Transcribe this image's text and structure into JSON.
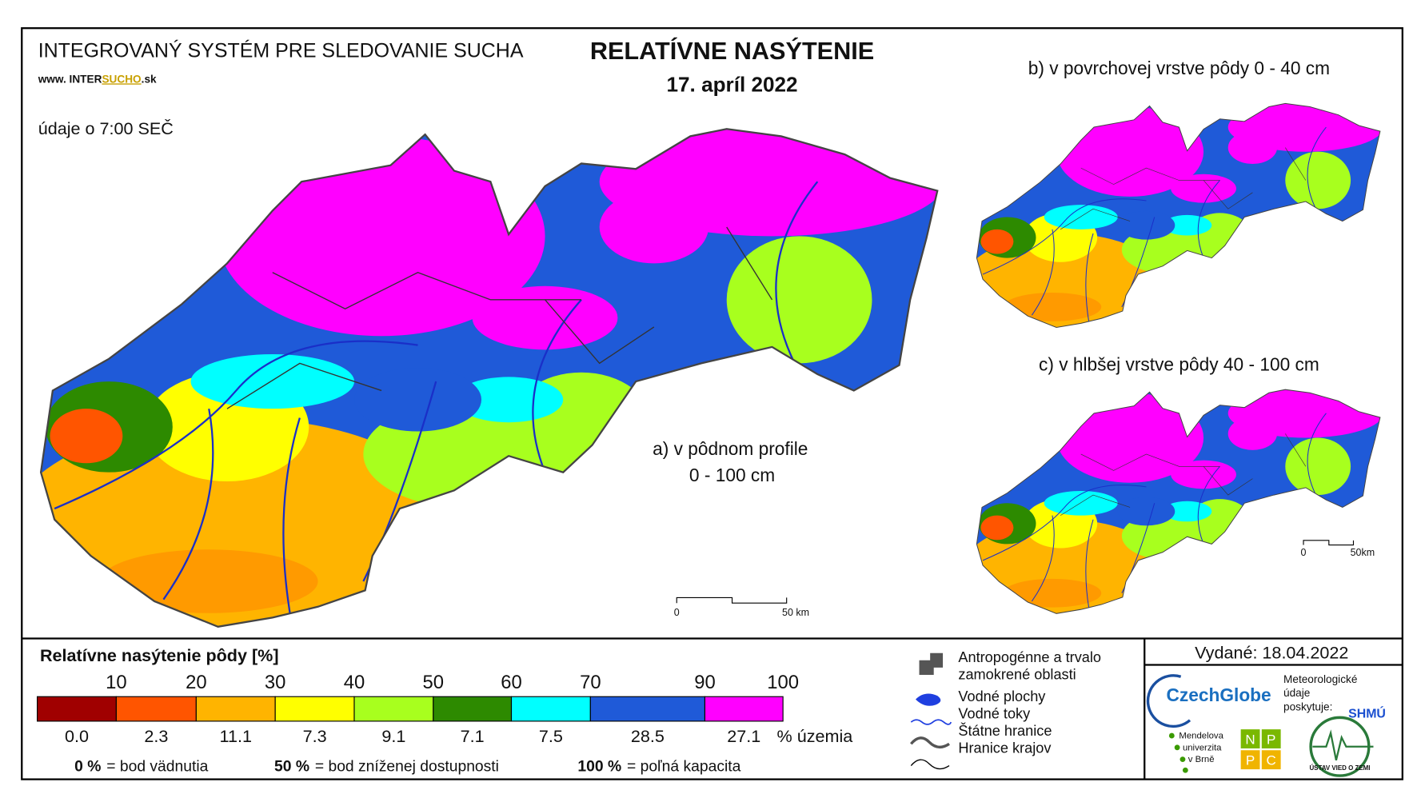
{
  "header": {
    "system": "INTEGROVANÝ SYSTÉM PRE SLEDOVANIE SUCHA",
    "website": [
      "www. INTER",
      "SUCHO",
      ".sk"
    ],
    "data_time": "údaje o 7:00 SEČ",
    "title": "RELATÍVNE NASÝTENIE",
    "date": "17. apríl 2022"
  },
  "maps": [
    {
      "label": [
        "a) v pôdnom profile",
        "0 - 100 cm"
      ],
      "scale": [
        "0",
        "50 km"
      ]
    },
    {
      "label": [
        "b) v povrchovej vrstve pôdy 0 - 40 cm"
      ]
    },
    {
      "label": [
        "c) v hlbšej vrstve pôdy 40 - 100 cm"
      ],
      "scale": [
        "0",
        "50km"
      ]
    }
  ],
  "legend": {
    "title": "Relatívne nasýtenie pôdy [%]",
    "thresholds": [
      10,
      20,
      30,
      40,
      50,
      60,
      70,
      90,
      100
    ],
    "classes": [
      {
        "color": "#a00000",
        "share": "0.0"
      },
      {
        "color": "#ff5500",
        "share": "2.3"
      },
      {
        "color": "#ffb400",
        "share": "11.1"
      },
      {
        "color": "#ffff00",
        "share": "7.3"
      },
      {
        "color": "#a8ff1e",
        "share": "9.1"
      },
      {
        "color": "#2d8a00",
        "share": "7.1"
      },
      {
        "color": "#00ffff",
        "share": "7.5"
      },
      {
        "color": "#1f5ad8",
        "share": "28.5"
      },
      {
        "color": "#ff00ff",
        "share": "27.1"
      }
    ],
    "unit": "% územia",
    "notes": [
      {
        "value": "0 %",
        "text": "= bod vädnutia"
      },
      {
        "value": "50 %",
        "text": "= bod zníženej dostupnosti"
      },
      {
        "value": "100 %",
        "text": "= poľná kapacita"
      }
    ]
  },
  "symbols": [
    [
      "Antropogénne a trvalo",
      "zamokrené oblasti"
    ],
    [
      "Vodné plochy"
    ],
    [
      "Vodné toky"
    ],
    [
      "Štátne hranice"
    ],
    [
      "Hranice krajov"
    ]
  ],
  "issued": "Vydané: 18.04.2022",
  "logos": {
    "czechglobe": "CzechGlobe",
    "shmu_note": [
      "Meteorologické",
      "údaje",
      "poskytuje:"
    ],
    "shmu": "SHMÚ",
    "mendel": [
      "Mendelova",
      "univerzita",
      "v Brně"
    ],
    "nppc": [
      "N",
      "P",
      "P",
      "C"
    ],
    "uvz": "ÚSTAV VIED O ZEMI"
  }
}
